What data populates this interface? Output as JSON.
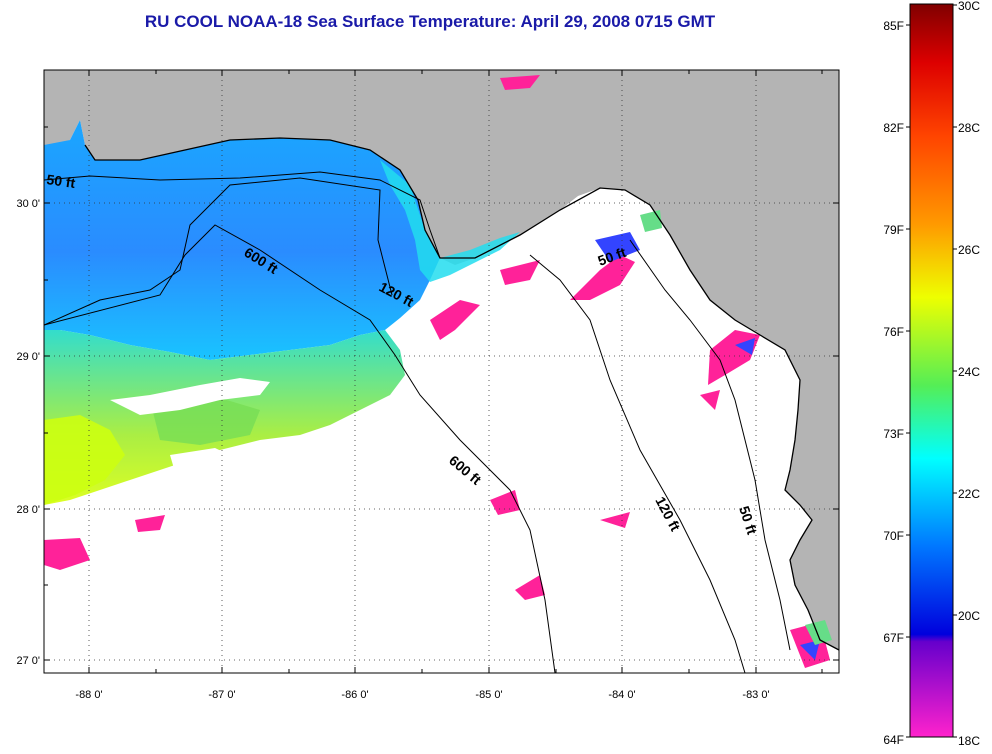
{
  "title": "RU COOL  NOAA-18  Sea Surface Temperature:  April 29, 2008 0715 GMT",
  "map": {
    "lat_labels": [
      "30 0'",
      "29 0'",
      "28 0'",
      "27 0'"
    ],
    "lon_labels": [
      "-88 0'",
      "-87 0'",
      "-86 0'",
      "-85 0'",
      "-84 0'",
      "-83 0'"
    ],
    "contour_labels": [
      "50 ft",
      "600 ft",
      "120 ft",
      "50 ft",
      "600 ft",
      "120 ft",
      "50 ft"
    ],
    "colors": {
      "land": "#b4b4b4",
      "no_data": "#ffffff",
      "coast": "#000000"
    }
  },
  "colorbar": {
    "fahrenheit_labels": [
      "85F",
      "82F",
      "79F",
      "76F",
      "73F",
      "70F",
      "67F",
      "64F"
    ],
    "celsius_labels": [
      "30C",
      "28C",
      "26C",
      "24C",
      "22C",
      "20C",
      "18C"
    ]
  }
}
